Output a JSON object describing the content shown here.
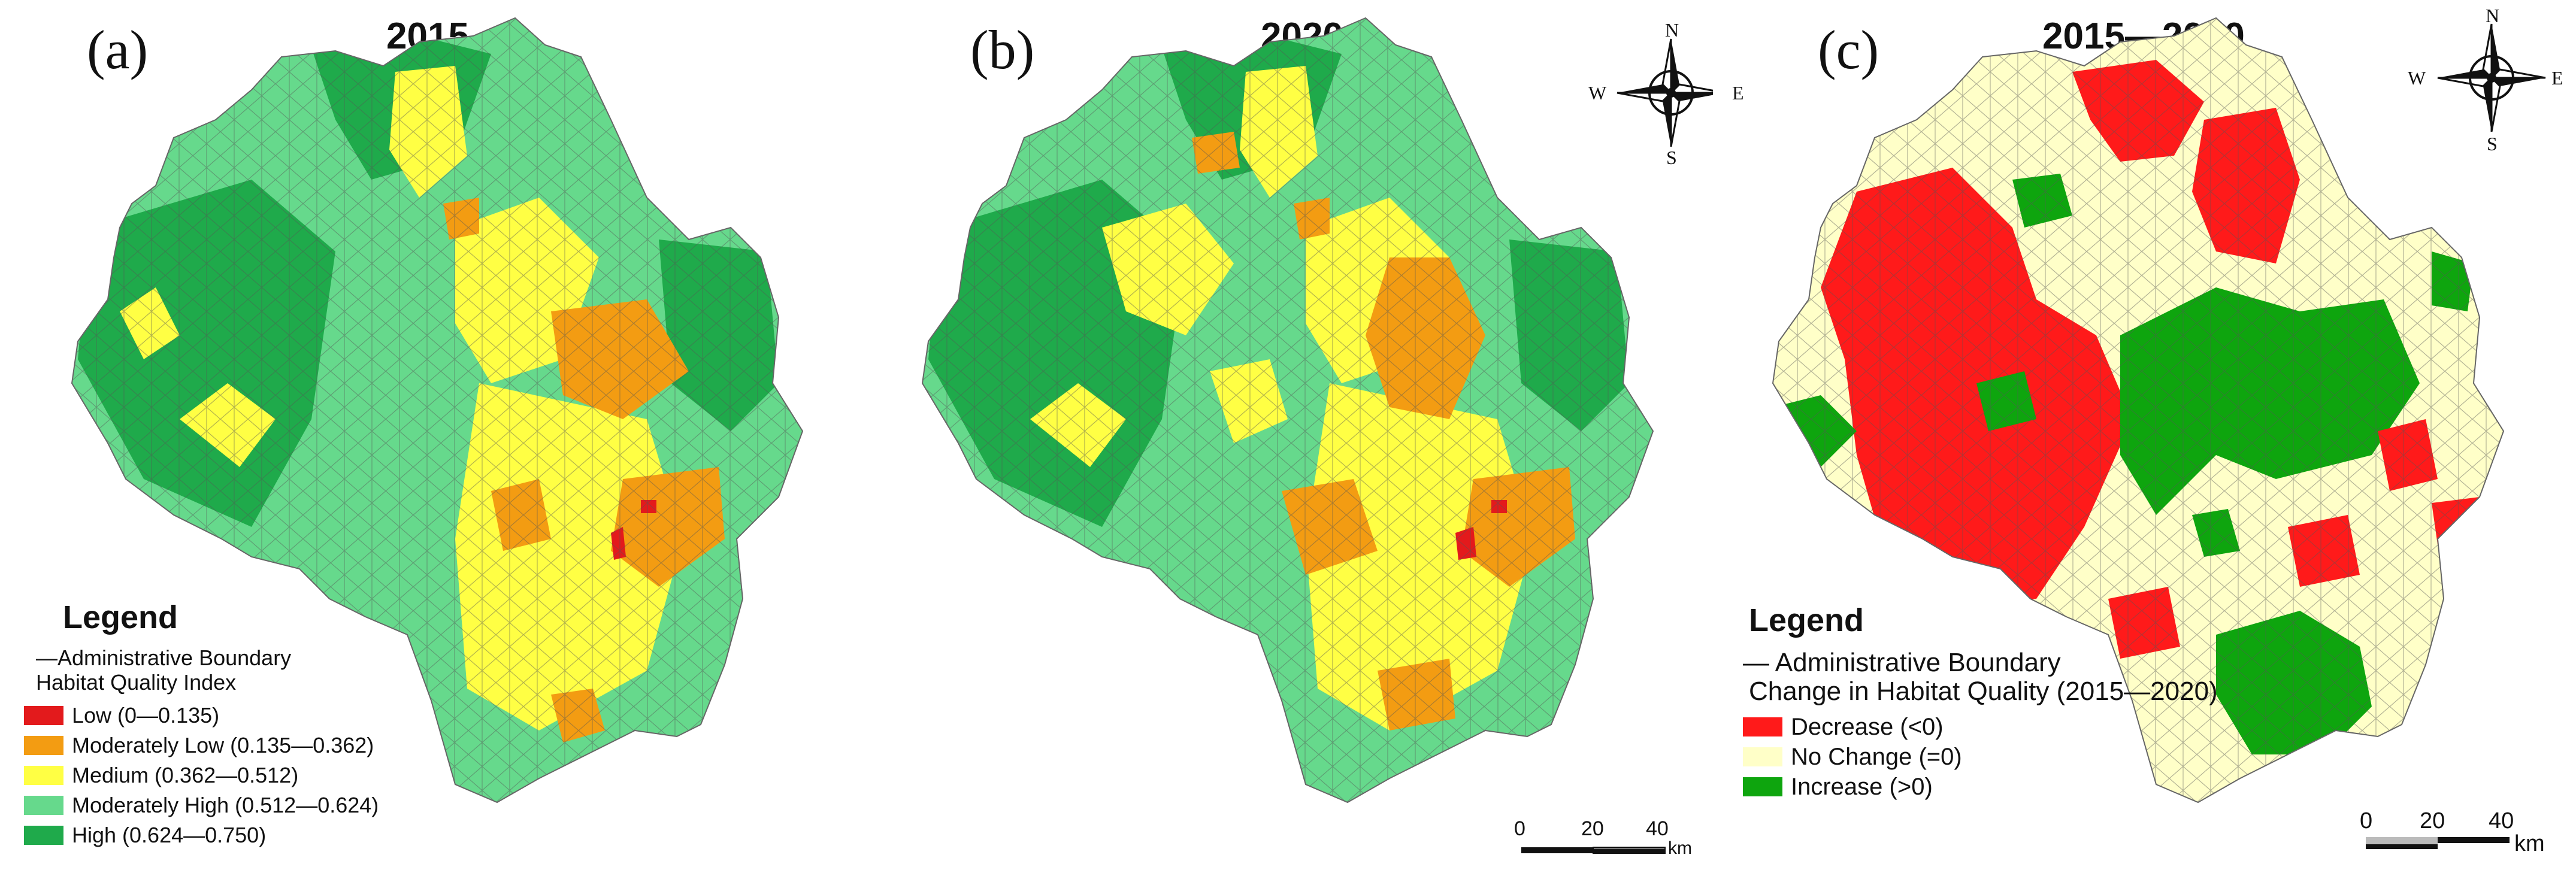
{
  "panels": [
    {
      "letter": "(a)",
      "title": "2015"
    },
    {
      "letter": "(b)",
      "title": "2020"
    },
    {
      "letter": "(c)",
      "title": "2015—2020"
    }
  ],
  "compass": {
    "n": "N",
    "s": "S",
    "e": "E",
    "w": "W"
  },
  "legend_hq": {
    "title": "Legend",
    "boundary": "—Administrative Boundary",
    "index_title": "Habitat Quality Index",
    "items": [
      {
        "label": "Low (0—0.135)",
        "color": "#e31a1c"
      },
      {
        "label": "Moderately Low (0.135—0.362)",
        "color": "#f39c12"
      },
      {
        "label": "Medium (0.362—0.512)",
        "color": "#ffff44"
      },
      {
        "label": "Moderately High (0.512—0.624)",
        "color": "#66d98c"
      },
      {
        "label": "High (0.624—0.750)",
        "color": "#1faa4b"
      }
    ]
  },
  "legend_change": {
    "title": "Legend",
    "boundary": "— Administrative Boundary",
    "index_title": "Change in Habitat Quality (2015—2020)",
    "items": [
      {
        "label": "Decrease (<0)",
        "color": "#ff1a1a"
      },
      {
        "label": "No Change (=0)",
        "color": "#ffffc8"
      },
      {
        "label": "Increase (>0)",
        "color": "#0ea50e"
      }
    ]
  },
  "scalebar": {
    "t0": "0",
    "t1": "20",
    "t2": "40",
    "unit": "km"
  }
}
